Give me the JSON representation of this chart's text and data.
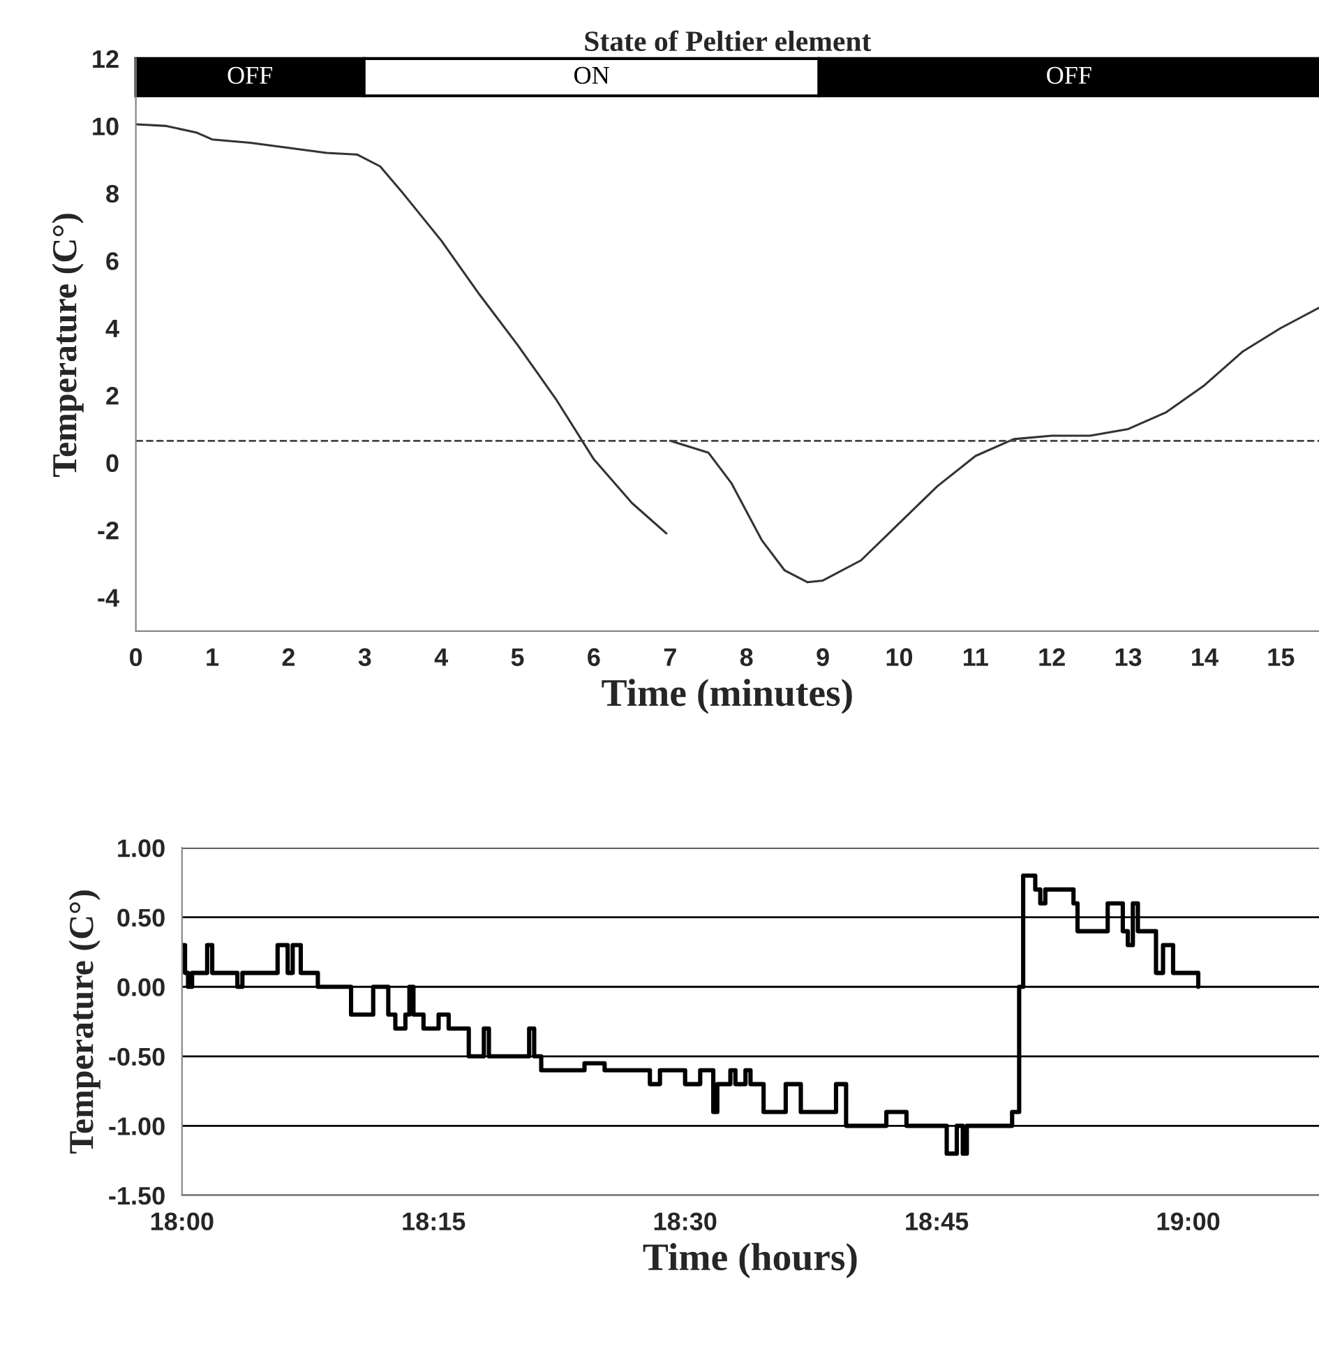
{
  "chart_data": [
    {
      "type": "line",
      "title": "State of Peltier element",
      "xlabel": "Time (minutes)",
      "ylabel": "Temperature (C°)",
      "xlim": [
        0,
        15.5
      ],
      "xticks": [
        0,
        1,
        2,
        3,
        4,
        5,
        6,
        7,
        8,
        9,
        10,
        11,
        12,
        13,
        14,
        15
      ],
      "ylim": [
        -5,
        12
      ],
      "yticks": [
        -4,
        -2,
        0,
        2,
        4,
        6,
        8,
        10,
        12
      ],
      "series": [
        {
          "color": "#333333",
          "x": [
            0,
            0.4,
            0.8,
            1.0,
            1.5,
            2.0,
            2.5,
            2.9,
            3.2,
            3.5,
            4.0,
            4.5,
            5.0,
            5.5,
            6.0,
            6.5,
            6.95,
            6.97,
            7.0,
            7.5,
            7.8,
            8.2,
            8.5,
            8.8,
            9.0,
            9.5,
            10.0,
            10.5,
            11.0,
            11.5,
            12.0,
            12.5,
            13.0,
            13.5,
            14.0,
            14.5,
            15.0,
            15.5
          ],
          "values": [
            10.05,
            10.0,
            9.8,
            9.6,
            9.5,
            9.35,
            9.2,
            9.15,
            8.8,
            8.0,
            6.6,
            5.0,
            3.5,
            1.9,
            0.1,
            -1.2,
            -2.1,
            null,
            0.65,
            0.3,
            -0.6,
            -2.3,
            -3.2,
            -3.55,
            -3.5,
            -2.9,
            -1.8,
            -0.7,
            0.2,
            0.7,
            0.8,
            0.8,
            1.0,
            1.5,
            2.3,
            3.3,
            4.0,
            4.6
          ]
        }
      ],
      "ref_lines": [
        {
          "axis": "y",
          "value": 0.65,
          "line_style": "dashed",
          "color": "#444444"
        }
      ],
      "bands": [
        {
          "axis": "x",
          "from": 0,
          "to": 2.99,
          "label": "OFF",
          "color": "#000000"
        },
        {
          "axis": "x",
          "from": 2.99,
          "to": 8.95,
          "label": "ON",
          "color": "#ffffff"
        },
        {
          "axis": "x",
          "from": 8.95,
          "to": 15.5,
          "label": "OFF",
          "color": "#000000"
        }
      ],
      "grid": false,
      "line_style": "solid",
      "marker": "none"
    },
    {
      "type": "step",
      "xlabel": "Time (hours)",
      "ylabel": "Temperature (C°)",
      "xlim": [
        18,
        19.13
      ],
      "xticks": [
        {
          "value": 18,
          "label": "18:00"
        },
        {
          "value": 18.25,
          "label": "18:15"
        },
        {
          "value": 18.5,
          "label": "18:30"
        },
        {
          "value": 18.75,
          "label": "18:45"
        },
        {
          "value": 19,
          "label": "19:00"
        }
      ],
      "ylim": [
        -1.5,
        1.0
      ],
      "yticks": [
        {
          "value": -1.5,
          "label": "-1.50"
        },
        {
          "value": -1.0,
          "label": "-1.00"
        },
        {
          "value": -0.5,
          "label": "-0.50"
        },
        {
          "value": 0,
          "label": "0.00"
        },
        {
          "value": 0.5,
          "label": "0.50"
        },
        {
          "value": 1.0,
          "label": "1.00"
        }
      ],
      "series": [
        {
          "color": "#000000",
          "x": [
            18.0,
            18.003,
            18.006,
            18.01,
            18.025,
            18.03,
            18.045,
            18.055,
            18.06,
            18.095,
            18.105,
            18.11,
            18.118,
            18.135,
            18.168,
            18.19,
            18.205,
            18.212,
            18.222,
            18.226,
            18.23,
            18.24,
            18.255,
            18.265,
            18.285,
            18.3,
            18.305,
            18.33,
            18.345,
            18.35,
            18.357,
            18.4,
            18.42,
            18.465,
            18.475,
            18.5,
            18.515,
            18.528,
            18.532,
            18.545,
            18.55,
            18.56,
            18.565,
            18.578,
            18.6,
            18.615,
            18.65,
            18.66,
            18.7,
            18.72,
            18.76,
            18.77,
            18.776,
            18.78,
            18.825,
            18.828,
            18.832,
            18.836,
            18.848,
            18.853,
            18.858,
            18.886,
            18.89,
            18.92,
            18.935,
            18.94,
            18.945,
            18.95,
            18.968,
            18.975,
            18.985,
            19.01
          ],
          "values": [
            0.3,
            0.1,
            0.0,
            0.1,
            0.3,
            0.1,
            0.1,
            0.0,
            0.1,
            0.3,
            0.1,
            0.3,
            0.1,
            0.0,
            -0.2,
            0.0,
            -0.2,
            -0.3,
            -0.2,
            0.0,
            -0.2,
            -0.3,
            -0.2,
            -0.3,
            -0.5,
            -0.3,
            -0.5,
            -0.5,
            -0.3,
            -0.5,
            -0.6,
            -0.55,
            -0.6,
            -0.7,
            -0.6,
            -0.7,
            -0.6,
            -0.9,
            -0.7,
            -0.6,
            -0.7,
            -0.6,
            -0.7,
            -0.9,
            -0.7,
            -0.9,
            -0.7,
            -1.0,
            -0.9,
            -1.0,
            -1.2,
            -1.0,
            -1.2,
            -1.0,
            -0.9,
            -0.9,
            0.0,
            0.8,
            0.7,
            0.6,
            0.7,
            0.6,
            0.4,
            0.6,
            0.4,
            0.3,
            0.6,
            0.4,
            0.1,
            0.3,
            0.1,
            0.0
          ]
        }
      ],
      "grid": "y",
      "line_style": "solid",
      "marker": "none"
    }
  ]
}
